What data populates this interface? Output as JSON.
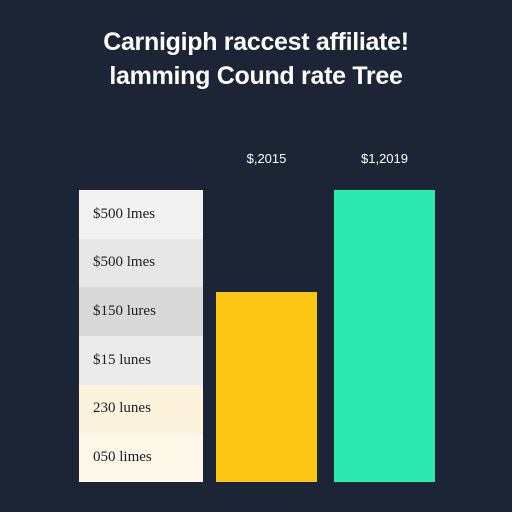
{
  "chart_data": {
    "type": "bar",
    "title_lines": [
      "Carnigiph raccest affiliate!",
      "lamming Cound rate Tree"
    ],
    "categories": [
      "$,2015",
      "$1,2019"
    ],
    "values": [
      190,
      292
    ],
    "ylim": [
      0,
      292
    ],
    "bar_colors": [
      "#fdc614",
      "#2de8b1"
    ],
    "table_rows": [
      {
        "label": "$500 lmes",
        "bg": "#f2f2f2"
      },
      {
        "label": "$500 lmes",
        "bg": "#e7e7e7"
      },
      {
        "label": "$150 lures",
        "bg": "#d9d9d9"
      },
      {
        "label": "$15 lunes",
        "bg": "#ebebeb"
      },
      {
        "label": "230 lunes",
        "bg": "#fdf3dc"
      },
      {
        "label": "050 limes",
        "bg": "#fdf8e8"
      }
    ],
    "grid": false,
    "legend": "left"
  },
  "colors": {
    "background": "#1c2536",
    "title_text": "#ffffff"
  }
}
